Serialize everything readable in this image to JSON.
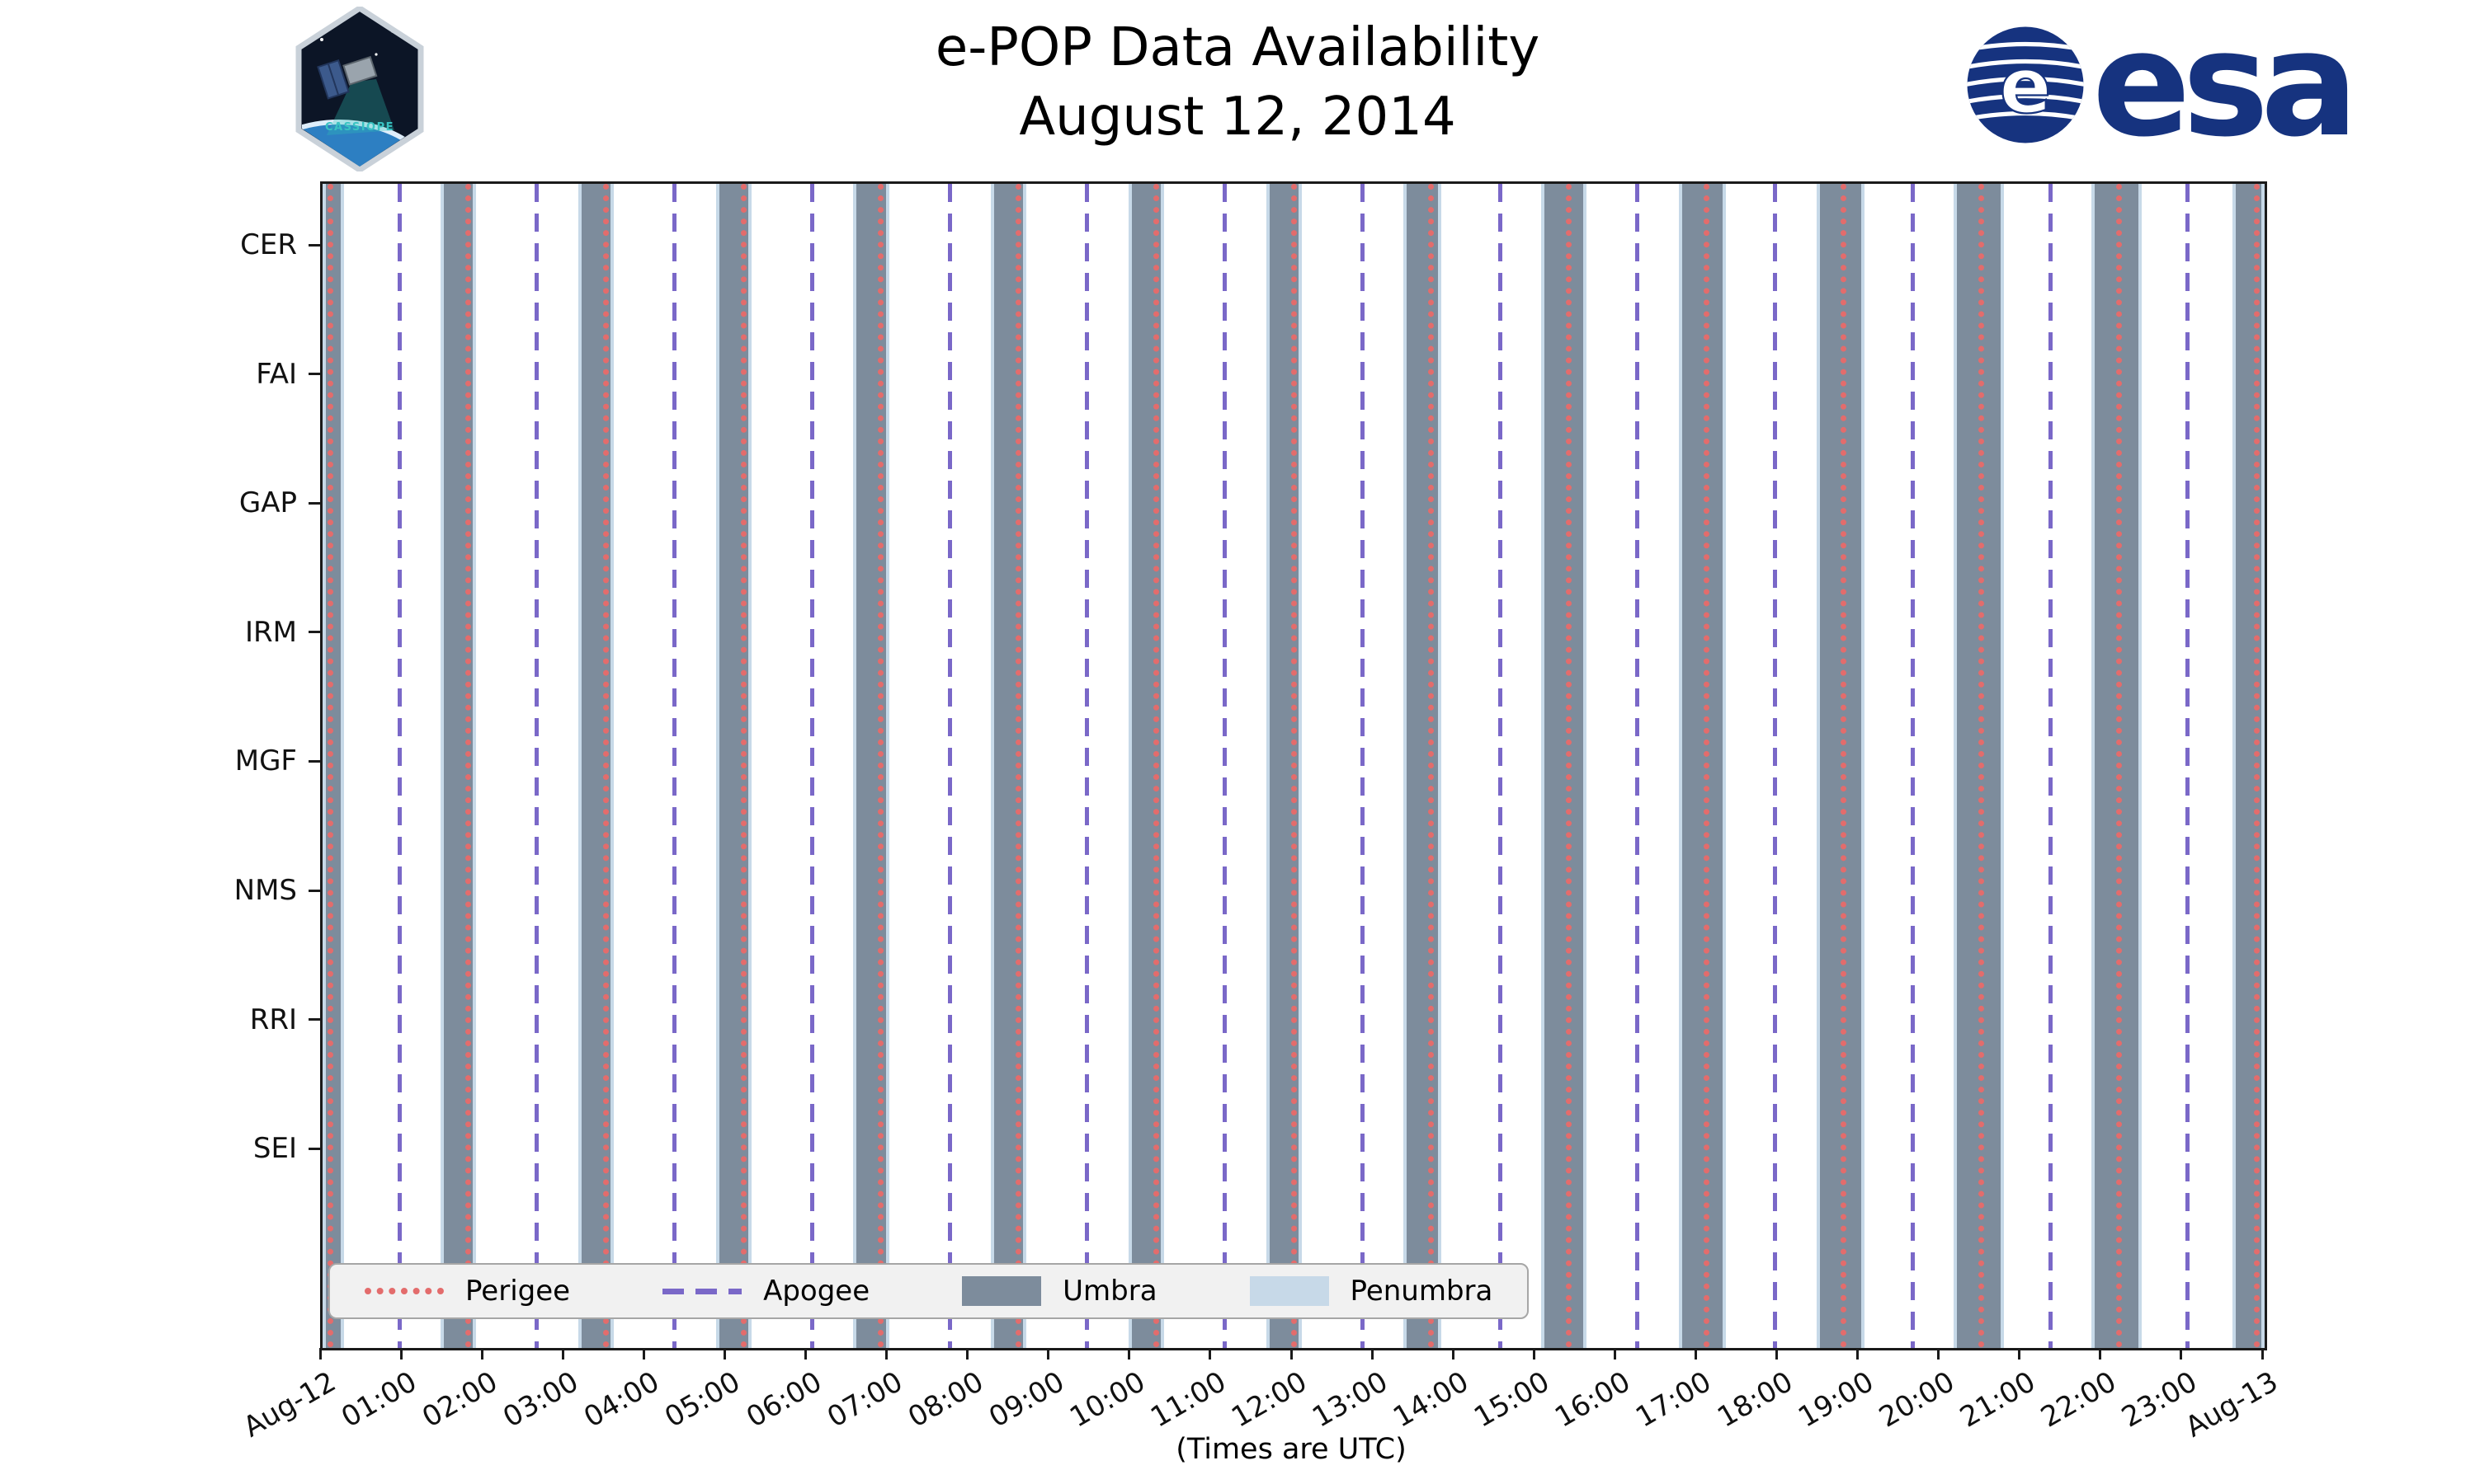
{
  "header": {
    "title_line1": "e-POP Data Availability",
    "title_line2": "August 12, 2014",
    "cassiope_patch_text": "CASSIOPE",
    "esa_logo_text": "esa",
    "esa_blue": "#16337f"
  },
  "chart_data": {
    "type": "timeline",
    "title": "e-POP Data Availability",
    "subtitle": "August 12, 2014",
    "xlabel": "(Times are UTC)",
    "x_axis": {
      "range_hours": [
        0,
        24
      ],
      "tick_labels": [
        "Aug-12",
        "01:00",
        "02:00",
        "03:00",
        "04:00",
        "05:00",
        "06:00",
        "07:00",
        "08:00",
        "09:00",
        "10:00",
        "11:00",
        "12:00",
        "13:00",
        "14:00",
        "15:00",
        "16:00",
        "17:00",
        "18:00",
        "19:00",
        "20:00",
        "21:00",
        "22:00",
        "23:00",
        "Aug-13"
      ]
    },
    "rows": [
      "CER",
      "FAI",
      "GAP",
      "IRM",
      "MGF",
      "NMS",
      "RRI",
      "SEI"
    ],
    "perigee_times_h": [
      0.1,
      1.8,
      3.5,
      5.2,
      6.9,
      8.6,
      10.3,
      12.0,
      13.7,
      15.4,
      17.1,
      18.8,
      20.5,
      22.2,
      23.9
    ],
    "apogee_times_h": [
      0.95,
      2.65,
      4.35,
      6.05,
      7.75,
      9.45,
      11.15,
      12.85,
      14.55,
      16.25,
      17.95,
      19.65,
      21.35,
      23.05
    ],
    "umbra_intervals_h": [
      [
        0.0,
        0.26
      ],
      [
        1.46,
        1.9
      ],
      [
        3.16,
        3.6
      ],
      [
        4.86,
        5.3
      ],
      [
        6.56,
        7.0
      ],
      [
        8.26,
        8.7
      ],
      [
        9.96,
        10.4
      ],
      [
        11.66,
        12.1
      ],
      [
        13.36,
        13.82
      ],
      [
        15.06,
        15.62
      ],
      [
        16.76,
        17.34
      ],
      [
        18.46,
        19.06
      ],
      [
        20.16,
        20.78
      ],
      [
        21.86,
        22.48
      ],
      [
        23.6,
        24.0
      ]
    ],
    "penumbra_note": "thin bands flanking each umbra interval",
    "legend": [
      "Perigee",
      "Apogee",
      "Umbra",
      "Penumbra"
    ],
    "colors": {
      "perigee": "#e36c6c",
      "apogee": "#7a68c8",
      "umbra": "#7d8c9c",
      "penumbra": "#c7d9e8"
    }
  }
}
